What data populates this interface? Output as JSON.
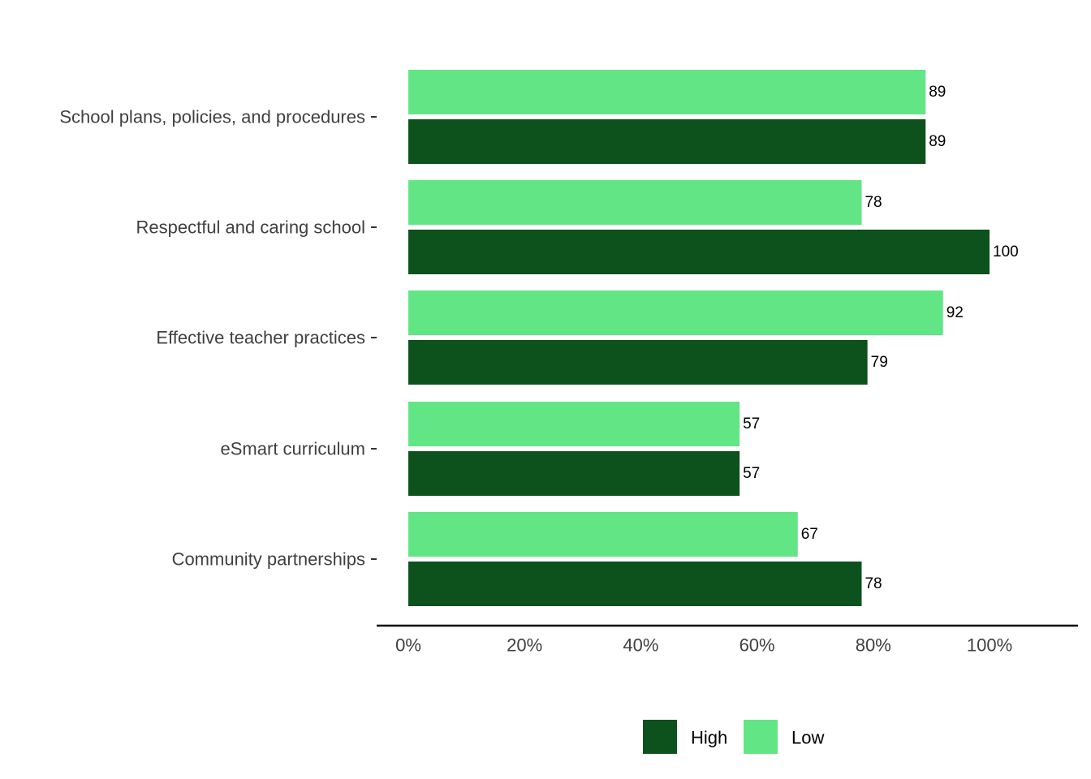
{
  "chart_data": {
    "type": "bar",
    "orientation": "horizontal",
    "categories": [
      "School plans, policies, and procedures",
      "Respectful and caring school",
      "Effective teacher practices",
      "eSmart curriculum",
      "Community partnerships"
    ],
    "series": [
      {
        "name": "Low",
        "color": "#62e585",
        "values": [
          89,
          78,
          92,
          57,
          67
        ]
      },
      {
        "name": "High",
        "color": "#0d511d",
        "values": [
          89,
          100,
          79,
          57,
          78
        ]
      }
    ],
    "x_ticks": [
      "0%",
      "20%",
      "40%",
      "60%",
      "80%",
      "100%"
    ],
    "x_tick_values": [
      0,
      20,
      40,
      60,
      80,
      100
    ],
    "xlim": [
      -5.3,
      115.5
    ],
    "title": "",
    "xlabel": "",
    "ylabel": "",
    "grid": false,
    "data_labels": true,
    "legend": {
      "position": "bottom",
      "entries": [
        {
          "name": "High",
          "color": "#0d511d"
        },
        {
          "name": "Low",
          "color": "#62e585"
        }
      ]
    }
  }
}
